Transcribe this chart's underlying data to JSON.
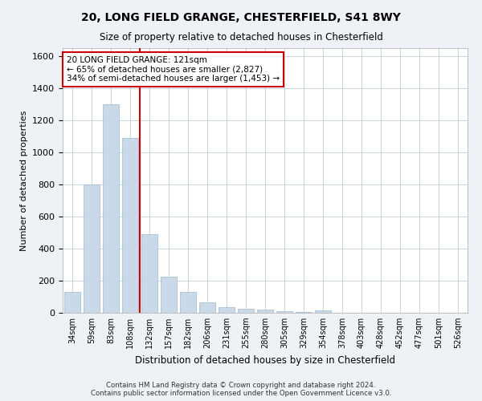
{
  "title1": "20, LONG FIELD GRANGE, CHESTERFIELD, S41 8WY",
  "title2": "Size of property relative to detached houses in Chesterfield",
  "xlabel": "Distribution of detached houses by size in Chesterfield",
  "ylabel": "Number of detached properties",
  "footnote": "Contains HM Land Registry data © Crown copyright and database right 2024.\nContains public sector information licensed under the Open Government Licence v3.0.",
  "categories": [
    "34sqm",
    "59sqm",
    "83sqm",
    "108sqm",
    "132sqm",
    "157sqm",
    "182sqm",
    "206sqm",
    "231sqm",
    "255sqm",
    "280sqm",
    "305sqm",
    "329sqm",
    "354sqm",
    "378sqm",
    "403sqm",
    "428sqm",
    "452sqm",
    "477sqm",
    "501sqm",
    "526sqm"
  ],
  "values": [
    130,
    800,
    1300,
    1090,
    490,
    225,
    130,
    65,
    35,
    25,
    18,
    8,
    5,
    15,
    2,
    2,
    2,
    1,
    1,
    1,
    1
  ],
  "bar_color": "#c9d9e8",
  "bar_edge_color": "#a0b8cc",
  "vline_x": 3.5,
  "vline_color": "#cc0000",
  "annotation_line1": "20 LONG FIELD GRANGE: 121sqm",
  "annotation_line2": "← 65% of detached houses are smaller (2,827)",
  "annotation_line3": "34% of semi-detached houses are larger (1,453) →",
  "annotation_box_color": "#ffffff",
  "annotation_box_edge": "#cc0000",
  "ylim": [
    0,
    1650
  ],
  "yticks": [
    0,
    200,
    400,
    600,
    800,
    1000,
    1200,
    1400,
    1600
  ],
  "background_color": "#eef2f7",
  "plot_bg_color": "#ffffff",
  "grid_color": "#c8d4e0"
}
